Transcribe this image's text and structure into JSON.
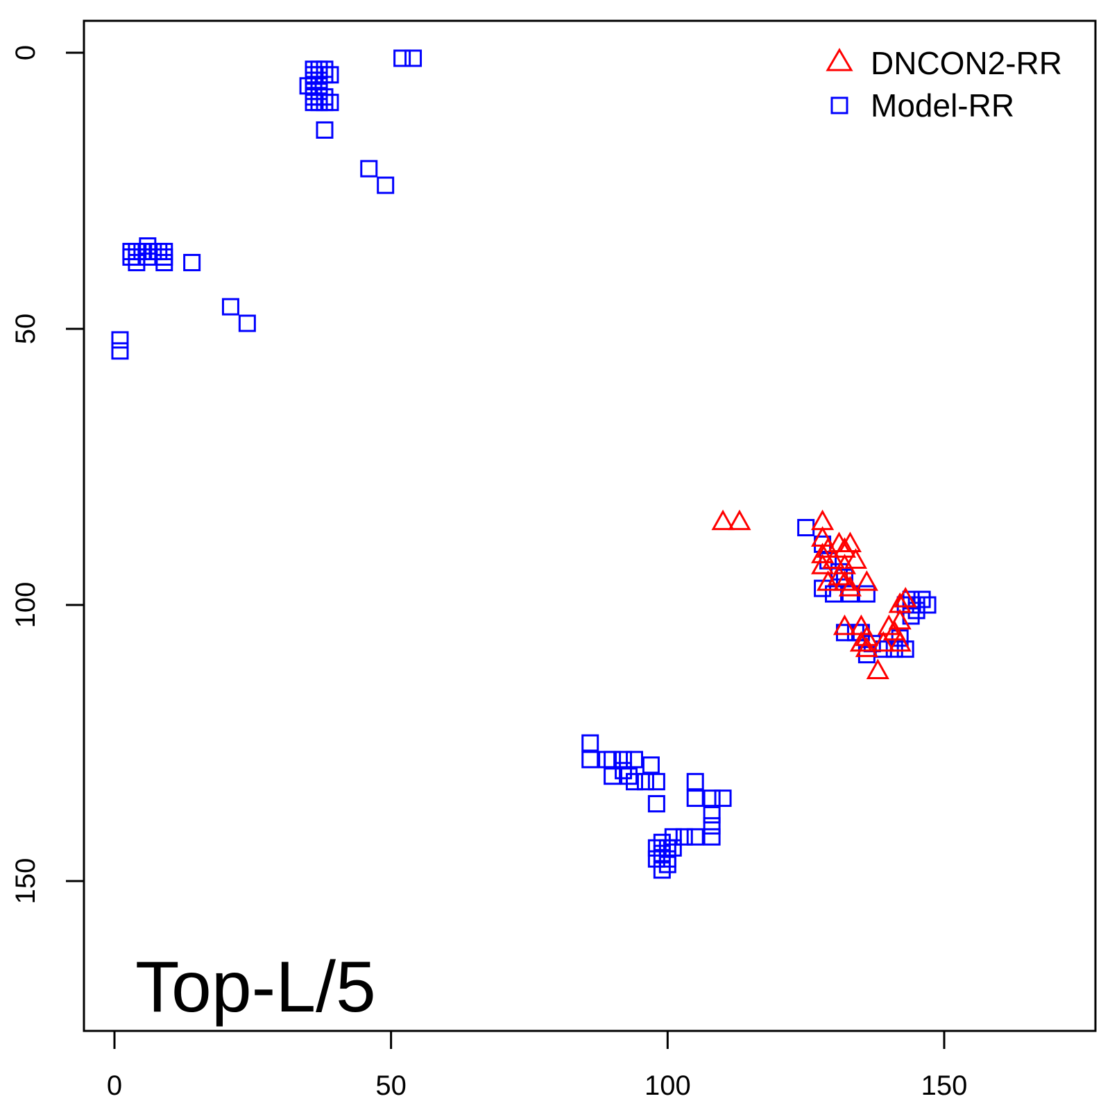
{
  "chart_data": {
    "type": "scatter",
    "title": "",
    "annotation": "Top-L/5",
    "xlim": [
      -6,
      178
    ],
    "ylim": [
      176,
      -6
    ],
    "y_reversed": true,
    "grid": false,
    "legend_position": "top-right",
    "x_ticks": [
      0,
      50,
      100,
      150
    ],
    "y_ticks": [
      0,
      50,
      100,
      150
    ],
    "series": [
      {
        "name": "DNCON2-RR",
        "marker": "triangle-open",
        "color": "#ff0000",
        "points": [
          [
            110,
            85
          ],
          [
            113,
            85
          ],
          [
            128,
            85
          ],
          [
            128,
            88
          ],
          [
            128,
            91
          ],
          [
            128,
            93
          ],
          [
            129,
            90
          ],
          [
            129,
            96
          ],
          [
            130,
            92
          ],
          [
            131,
            89
          ],
          [
            131,
            95
          ],
          [
            132,
            90
          ],
          [
            132,
            93
          ],
          [
            132,
            96
          ],
          [
            133,
            89
          ],
          [
            133,
            97
          ],
          [
            134,
            92
          ],
          [
            136,
            96
          ],
          [
            132,
            104
          ],
          [
            135,
            104
          ],
          [
            135,
            107
          ],
          [
            136,
            106
          ],
          [
            136,
            108
          ],
          [
            138,
            112
          ],
          [
            139,
            107
          ],
          [
            140,
            104
          ],
          [
            141,
            105
          ],
          [
            142,
            100
          ],
          [
            142,
            103
          ],
          [
            142,
            107
          ],
          [
            143,
            99
          ]
        ]
      },
      {
        "name": "Model-RR",
        "marker": "square-open",
        "color": "#0000ff",
        "points": [
          [
            52,
            1
          ],
          [
            54,
            1
          ],
          [
            36,
            3
          ],
          [
            37,
            3
          ],
          [
            38,
            3
          ],
          [
            36,
            4
          ],
          [
            37,
            4
          ],
          [
            38,
            4
          ],
          [
            39,
            4
          ],
          [
            36,
            5
          ],
          [
            37,
            5
          ],
          [
            35,
            6
          ],
          [
            36,
            6
          ],
          [
            37,
            6
          ],
          [
            36,
            7
          ],
          [
            37,
            7
          ],
          [
            36,
            8
          ],
          [
            37,
            8
          ],
          [
            38,
            8
          ],
          [
            36,
            9
          ],
          [
            37,
            9
          ],
          [
            38,
            9
          ],
          [
            39,
            9
          ],
          [
            38,
            14
          ],
          [
            46,
            21
          ],
          [
            49,
            24
          ],
          [
            6,
            35
          ],
          [
            3,
            36
          ],
          [
            4,
            36
          ],
          [
            5,
            36
          ],
          [
            7,
            36
          ],
          [
            8,
            36
          ],
          [
            9,
            36
          ],
          [
            3,
            37
          ],
          [
            4,
            37
          ],
          [
            6,
            37
          ],
          [
            9,
            37
          ],
          [
            4,
            38
          ],
          [
            9,
            38
          ],
          [
            14,
            38
          ],
          [
            21,
            46
          ],
          [
            24,
            49
          ],
          [
            1,
            52
          ],
          [
            1,
            54
          ],
          [
            125,
            86
          ],
          [
            128,
            89
          ],
          [
            129,
            92
          ],
          [
            131,
            94
          ],
          [
            128,
            97
          ],
          [
            130,
            98
          ],
          [
            132,
            95
          ],
          [
            133,
            98
          ],
          [
            136,
            98
          ],
          [
            132,
            105
          ],
          [
            134,
            105
          ],
          [
            135,
            105
          ],
          [
            137,
            107
          ],
          [
            136,
            109
          ],
          [
            139,
            108
          ],
          [
            141,
            108
          ],
          [
            142,
            106
          ],
          [
            143,
            108
          ],
          [
            143,
            100
          ],
          [
            144,
            99
          ],
          [
            145,
            100
          ],
          [
            146,
            99
          ],
          [
            147,
            100
          ],
          [
            144,
            102
          ],
          [
            145,
            101
          ],
          [
            86,
            125
          ],
          [
            86,
            128
          ],
          [
            89,
            128
          ],
          [
            90,
            128
          ],
          [
            92,
            128
          ],
          [
            94,
            128
          ],
          [
            90,
            131
          ],
          [
            92,
            130
          ],
          [
            93,
            131
          ],
          [
            94,
            132
          ],
          [
            97,
            129
          ],
          [
            96,
            132
          ],
          [
            98,
            132
          ],
          [
            98,
            136
          ],
          [
            105,
            132
          ],
          [
            105,
            135
          ],
          [
            108,
            135
          ],
          [
            110,
            135
          ],
          [
            108,
            138
          ],
          [
            108,
            140
          ],
          [
            108,
            142
          ],
          [
            105,
            142
          ],
          [
            103,
            142
          ],
          [
            101,
            142
          ],
          [
            99,
            143
          ],
          [
            100,
            144
          ],
          [
            98,
            144
          ],
          [
            99,
            145
          ],
          [
            101,
            144
          ],
          [
            100,
            146
          ],
          [
            98,
            146
          ],
          [
            100,
            147
          ],
          [
            99,
            148
          ]
        ]
      }
    ]
  }
}
